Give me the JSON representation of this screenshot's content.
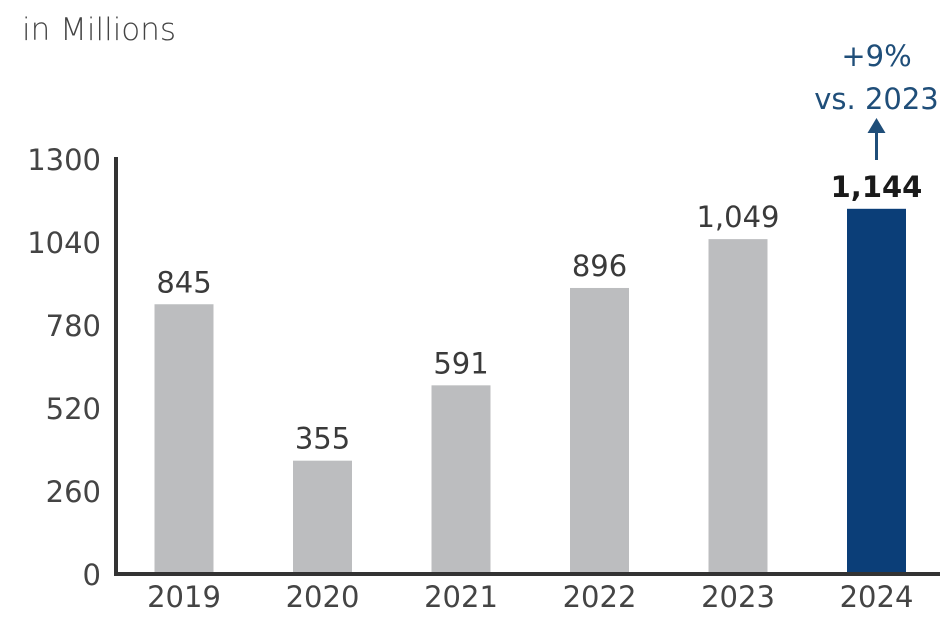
{
  "chart_data": {
    "type": "bar",
    "unit_label": "in Millions",
    "categories": [
      "2019",
      "2020",
      "2021",
      "2022",
      "2023",
      "2024"
    ],
    "values": [
      845,
      355,
      591,
      896,
      1049,
      1144
    ],
    "data_labels": [
      "845",
      "355",
      "591",
      "896",
      "1,049",
      "1,144"
    ],
    "yticks": [
      "0",
      "260",
      "520",
      "780",
      "1040",
      "1300"
    ],
    "ylim": [
      0,
      1300
    ],
    "grid": false,
    "highlight_index": 5,
    "annotation": {
      "line1": "+9%",
      "line2": "vs. 2023"
    },
    "colors": {
      "bar": "#bcbdbf",
      "highlight": "#0b3e78",
      "axis": "#333333",
      "annotation": "#1f4e79"
    }
  }
}
